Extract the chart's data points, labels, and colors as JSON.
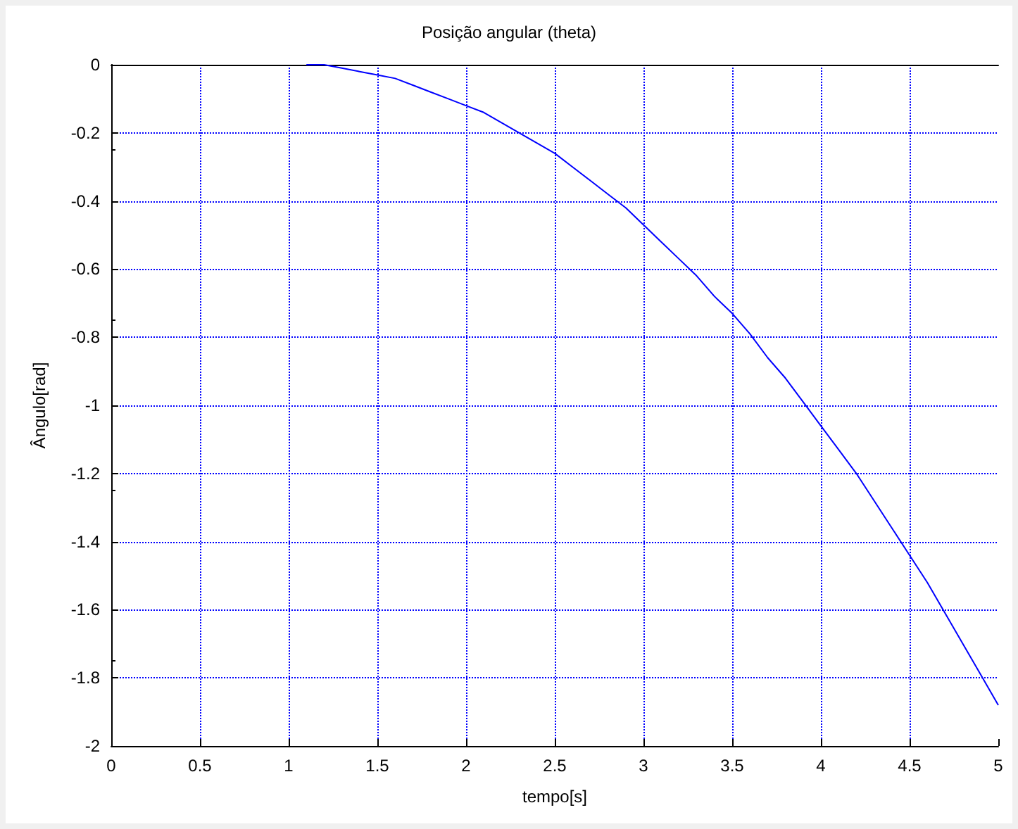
{
  "chart_data": {
    "type": "line",
    "title": "Posição angular (theta)",
    "xlabel": "tempo[s]",
    "ylabel": "Ângulo[rad]",
    "x": [
      1.1,
      1.2,
      1.3,
      1.4,
      1.5,
      1.6,
      1.7,
      1.8,
      1.9,
      2.0,
      2.1,
      2.2,
      2.3,
      2.4,
      2.5,
      2.6,
      2.7,
      2.8,
      2.9,
      3.0,
      3.1,
      3.2,
      3.3,
      3.4,
      3.5,
      3.6,
      3.7,
      3.8,
      3.9,
      4.0,
      4.1,
      4.2,
      4.3,
      4.4,
      4.5,
      4.6,
      4.7,
      4.8,
      4.9,
      5.0
    ],
    "series": [
      {
        "color": "#0000ff",
        "values": [
          0,
          0,
          -0.01,
          -0.02,
          -0.03,
          -0.04,
          -0.06,
          -0.08,
          -0.1,
          -0.12,
          -0.14,
          -0.17,
          -0.2,
          -0.23,
          -0.26,
          -0.3,
          -0.34,
          -0.38,
          -0.42,
          -0.47,
          -0.52,
          -0.57,
          -0.62,
          -0.68,
          -0.73,
          -0.79,
          -0.86,
          -0.92,
          -0.99,
          -1.06,
          -1.13,
          -1.2,
          -1.28,
          -1.36,
          -1.44,
          -1.52,
          -1.61,
          -1.7,
          -1.79,
          -1.88
        ]
      }
    ],
    "xlim": [
      0,
      5
    ],
    "xticks": [
      0,
      0.5,
      1,
      1.5,
      2,
      2.5,
      3,
      3.5,
      4,
      4.5,
      5
    ],
    "ylim": [
      -2,
      0
    ],
    "yticks": [
      -2,
      -1.8,
      -1.6,
      -1.4,
      -1.2,
      -1,
      -0.8,
      -0.6,
      -0.4,
      -0.2,
      0
    ],
    "grid": true,
    "marker": "none",
    "line_style": "solid"
  }
}
